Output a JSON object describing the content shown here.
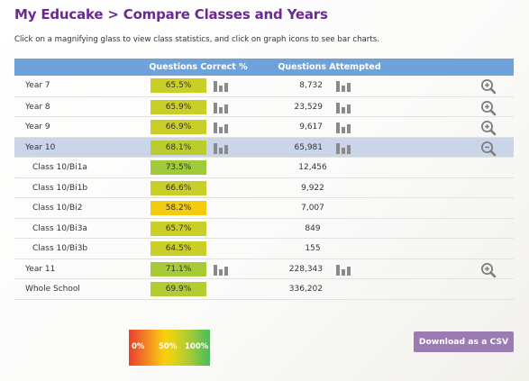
{
  "page": {
    "title": "My Educake > Compare Classes and Years",
    "instructions": "Click on a magnifying glass to view class statistics, and click on graph icons to see bar charts."
  },
  "table": {
    "headers": {
      "correct": "Questions Correct %",
      "attempted": "Questions Attempted"
    },
    "rows": [
      {
        "label": "Year 7",
        "pct": "65.5%",
        "color": "#c9cf26",
        "attempted": "8,732",
        "type": "year",
        "expanded": false
      },
      {
        "label": "Year 8",
        "pct": "65.9%",
        "color": "#c9cf26",
        "attempted": "23,529",
        "type": "year",
        "expanded": false
      },
      {
        "label": "Year 9",
        "pct": "66.9%",
        "color": "#c9cf26",
        "attempted": "9,617",
        "type": "year",
        "expanded": false
      },
      {
        "label": "Year 10",
        "pct": "68.1%",
        "color": "#bccc2c",
        "attempted": "65,981",
        "type": "year",
        "expanded": true
      },
      {
        "label": "Class 10/Bi1a",
        "pct": "73.5%",
        "color": "#9fca3a",
        "attempted": "12,456",
        "type": "class"
      },
      {
        "label": "Class 10/Bi1b",
        "pct": "66.6%",
        "color": "#c9cf26",
        "attempted": "9,922",
        "type": "class"
      },
      {
        "label": "Class 10/Bi2",
        "pct": "58.2%",
        "color": "#f3cc10",
        "attempted": "7,007",
        "type": "class"
      },
      {
        "label": "Class 10/Bi3a",
        "pct": "65.7%",
        "color": "#c9cf26",
        "attempted": "849",
        "type": "class"
      },
      {
        "label": "Class 10/Bi3b",
        "pct": "64.5%",
        "color": "#c9cf26",
        "attempted": "155",
        "type": "class"
      },
      {
        "label": "Year 11",
        "pct": "71.1%",
        "color": "#a6cb36",
        "attempted": "228,343",
        "type": "year",
        "expanded": false
      },
      {
        "label": "Whole School",
        "pct": "69.9%",
        "color": "#b2cc31",
        "attempted": "336,202",
        "type": "total"
      }
    ]
  },
  "legend": {
    "min": "0%",
    "mid": "50%",
    "max": "100%"
  },
  "actions": {
    "download_csv": "Download as a CSV"
  },
  "icons": {
    "bars": "bar-chart-icon",
    "zoom_in": "magnify-plus-icon",
    "zoom_out": "magnify-minus-icon"
  }
}
